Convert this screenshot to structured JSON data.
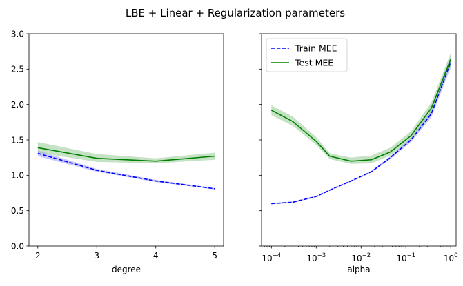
{
  "title": "LBE + Linear + Regularization parameters",
  "colors": {
    "train": "#0000ff",
    "test": "#008000",
    "band_train": "#8a8aff",
    "band_test": "#7fbf7f"
  },
  "chart_data": [
    {
      "type": "line",
      "xlabel": "degree",
      "ylabel": "",
      "x_scale": "linear",
      "xlim": [
        1.85,
        5.15
      ],
      "ylim": [
        0.0,
        3.0
      ],
      "xticks": [
        2,
        3,
        4,
        5
      ],
      "xtick_labels": [
        "2",
        "3",
        "4",
        "5"
      ],
      "yticks": [
        0.0,
        0.5,
        1.0,
        1.5,
        2.0,
        2.5,
        3.0
      ],
      "ytick_labels": [
        "0.0",
        "0.5",
        "1.0",
        "1.5",
        "2.0",
        "2.5",
        "3.0"
      ],
      "grid": false,
      "x": [
        2,
        3,
        4,
        5
      ],
      "series": [
        {
          "name": "Train MEE",
          "style": "dashed",
          "color": "#0000ff",
          "values": [
            1.31,
            1.07,
            0.92,
            0.81
          ],
          "lower": [
            1.27,
            1.05,
            0.905,
            0.8
          ],
          "upper": [
            1.35,
            1.09,
            0.935,
            0.82
          ]
        },
        {
          "name": "Test MEE",
          "style": "solid",
          "color": "#008000",
          "values": [
            1.39,
            1.24,
            1.2,
            1.27
          ],
          "lower": [
            1.32,
            1.19,
            1.17,
            1.22
          ],
          "upper": [
            1.47,
            1.3,
            1.24,
            1.32
          ]
        }
      ]
    },
    {
      "type": "line",
      "xlabel": "alpha",
      "ylabel": "",
      "x_scale": "log",
      "xlim_log10": [
        -4.22,
        0.12
      ],
      "ylim": [
        0.0,
        3.0
      ],
      "xticks_log10": [
        -4,
        -3,
        -2,
        -1,
        0
      ],
      "xtick_labels": [
        {
          "base": "10",
          "exp": "−4"
        },
        {
          "base": "10",
          "exp": "−3"
        },
        {
          "base": "10",
          "exp": "−2"
        },
        {
          "base": "10",
          "exp": "−1"
        },
        {
          "base": "10",
          "exp": "0"
        }
      ],
      "yticks": [
        0.0,
        0.5,
        1.0,
        1.5,
        2.0,
        2.5,
        3.0
      ],
      "grid": false,
      "legend": {
        "position": "top-left",
        "entries": [
          {
            "label": "Train MEE",
            "style": "dashed",
            "color": "#0000ff"
          },
          {
            "label": "Test MEE",
            "style": "solid",
            "color": "#008000"
          }
        ]
      },
      "x": [
        0.0001,
        0.0003,
        0.001,
        0.002,
        0.006,
        0.017,
        0.045,
        0.13,
        0.37,
        1.0
      ],
      "series": [
        {
          "name": "Train MEE",
          "style": "dashed",
          "color": "#0000ff",
          "values": [
            0.6,
            0.62,
            0.7,
            0.79,
            0.92,
            1.05,
            1.25,
            1.5,
            1.87,
            2.6
          ],
          "lower": [
            0.59,
            0.61,
            0.69,
            0.78,
            0.91,
            1.04,
            1.23,
            1.47,
            1.82,
            2.52
          ],
          "upper": [
            0.61,
            0.63,
            0.71,
            0.8,
            0.93,
            1.06,
            1.27,
            1.53,
            1.92,
            2.68
          ]
        },
        {
          "name": "Test MEE",
          "style": "solid",
          "color": "#008000",
          "values": [
            1.92,
            1.76,
            1.48,
            1.27,
            1.2,
            1.22,
            1.33,
            1.56,
            1.95,
            2.64
          ],
          "lower": [
            1.85,
            1.7,
            1.43,
            1.23,
            1.16,
            1.17,
            1.28,
            1.5,
            1.87,
            2.55
          ],
          "upper": [
            1.99,
            1.83,
            1.54,
            1.31,
            1.25,
            1.28,
            1.39,
            1.62,
            2.03,
            2.73
          ]
        }
      ]
    }
  ]
}
